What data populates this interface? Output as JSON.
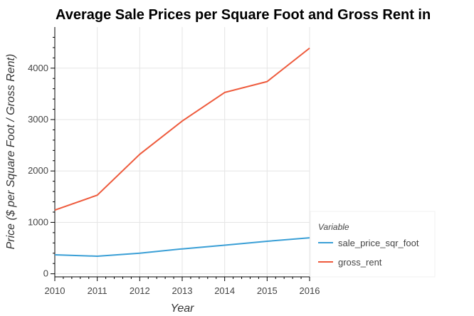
{
  "chart_data": {
    "type": "line",
    "title": "Average Sale Prices per Square Foot and Gross Rent in",
    "xlabel": "Year",
    "ylabel": "Price ($ per Square Foot / Gross Rent)",
    "x": [
      2010,
      2011,
      2012,
      2013,
      2014,
      2015,
      2016
    ],
    "xlim": [
      2010,
      2016
    ],
    "ylim": [
      -60,
      4800
    ],
    "yticks": [
      0,
      1000,
      2000,
      3000,
      4000
    ],
    "grid": true,
    "legend": {
      "title": "Variable",
      "placement": "right"
    },
    "series": [
      {
        "name": "sale_price_sqr_foot",
        "color": "#3a9fd6",
        "values": [
          369,
          342,
          400,
          484,
          556,
          632,
          700
        ]
      },
      {
        "name": "gross_rent",
        "color": "#ee5a3c",
        "values": [
          1239,
          1530,
          2324,
          2971,
          3528,
          3739,
          4390
        ]
      }
    ]
  }
}
